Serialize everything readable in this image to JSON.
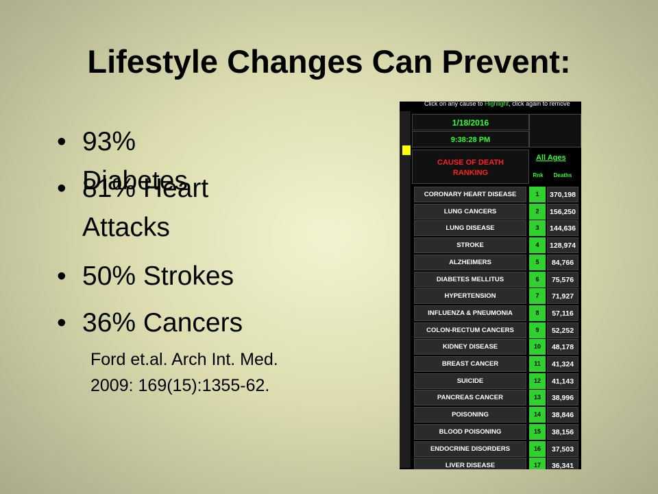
{
  "title": "Lifestyle Changes Can Prevent:",
  "bullets": [
    "93% Diabetes",
    "81% Heart Attacks",
    "50% Strokes",
    "36% Cancers"
  ],
  "citation": [
    "Ford et.al. Arch Int. Med.",
    "2009: 169(15):1355-62."
  ],
  "table": {
    "instruction": [
      "Click on any cause to ",
      "Highlight",
      ", click again to remove"
    ],
    "date": "1/18/2016",
    "time": "9:38:28 PM",
    "heading": [
      "CAUSE OF DEATH",
      "RANKING"
    ],
    "filter": "All Ages",
    "columns": [
      "Rnk",
      "Deaths"
    ],
    "rows": [
      [
        "CORONARY HEART DISEASE",
        1,
        "370,198"
      ],
      [
        "LUNG CANCERS",
        2,
        "156,250"
      ],
      [
        "LUNG DISEASE",
        3,
        "144,636"
      ],
      [
        "STROKE",
        4,
        "128,974"
      ],
      [
        "ALZHEIMERS",
        5,
        "84,766"
      ],
      [
        "DIABETES MELLITUS",
        6,
        "75,576"
      ],
      [
        "HYPERTENSION",
        7,
        "71,927"
      ],
      [
        "INFLUENZA & PNEUMONIA",
        8,
        "57,116"
      ],
      [
        "COLON-RECTUM CANCERS",
        9,
        "52,252"
      ],
      [
        "KIDNEY DISEASE",
        10,
        "48,178"
      ],
      [
        "BREAST CANCER",
        11,
        "41,324"
      ],
      [
        "SUICIDE",
        12,
        "41,143"
      ],
      [
        "PANCREAS CANCER",
        13,
        "38,996"
      ],
      [
        "POISONING",
        14,
        "38,846"
      ],
      [
        "BLOOD POISONING",
        15,
        "38,156"
      ],
      [
        "ENDOCRINE DISORDERS",
        16,
        "37,503"
      ],
      [
        "LIVER DISEASE",
        17,
        "36,341"
      ]
    ]
  }
}
